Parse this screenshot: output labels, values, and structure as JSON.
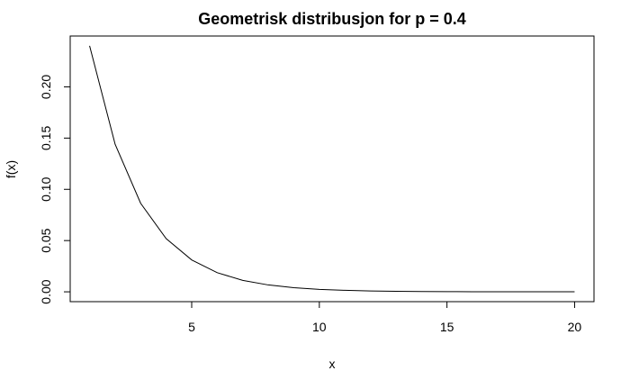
{
  "chart_data": {
    "type": "line",
    "title": "Geometrisk distribusjon for p = 0.4",
    "xlabel": "x",
    "ylabel": "f(x)",
    "xlim": [
      0.24,
      20.76
    ],
    "ylim": [
      -0.0096,
      0.2496
    ],
    "xticks": [
      {
        "value": 5,
        "label": "5"
      },
      {
        "value": 10,
        "label": "10"
      },
      {
        "value": 15,
        "label": "15"
      },
      {
        "value": 20,
        "label": "20"
      }
    ],
    "yticks": [
      {
        "value": 0.0,
        "label": "0.00"
      },
      {
        "value": 0.05,
        "label": "0.05"
      },
      {
        "value": 0.1,
        "label": "0.10"
      },
      {
        "value": 0.15,
        "label": "0.15"
      },
      {
        "value": 0.2,
        "label": "0.20"
      }
    ],
    "series": [
      {
        "x": [
          1,
          2,
          3,
          4,
          5,
          6,
          7,
          8,
          9,
          10,
          11,
          12,
          13,
          14,
          15,
          16,
          17,
          18,
          19,
          20
        ],
        "y": [
          0.24,
          0.144,
          0.0864,
          0.05184,
          0.0311,
          0.01866,
          0.0112,
          0.00672,
          0.00403,
          0.00242,
          0.00145,
          0.00087,
          0.00052,
          0.00031,
          0.00019,
          0.00011,
          7e-05,
          4e-05,
          2e-05,
          1e-05
        ],
        "color": "#000000"
      }
    ],
    "grid": false,
    "legend": false
  }
}
